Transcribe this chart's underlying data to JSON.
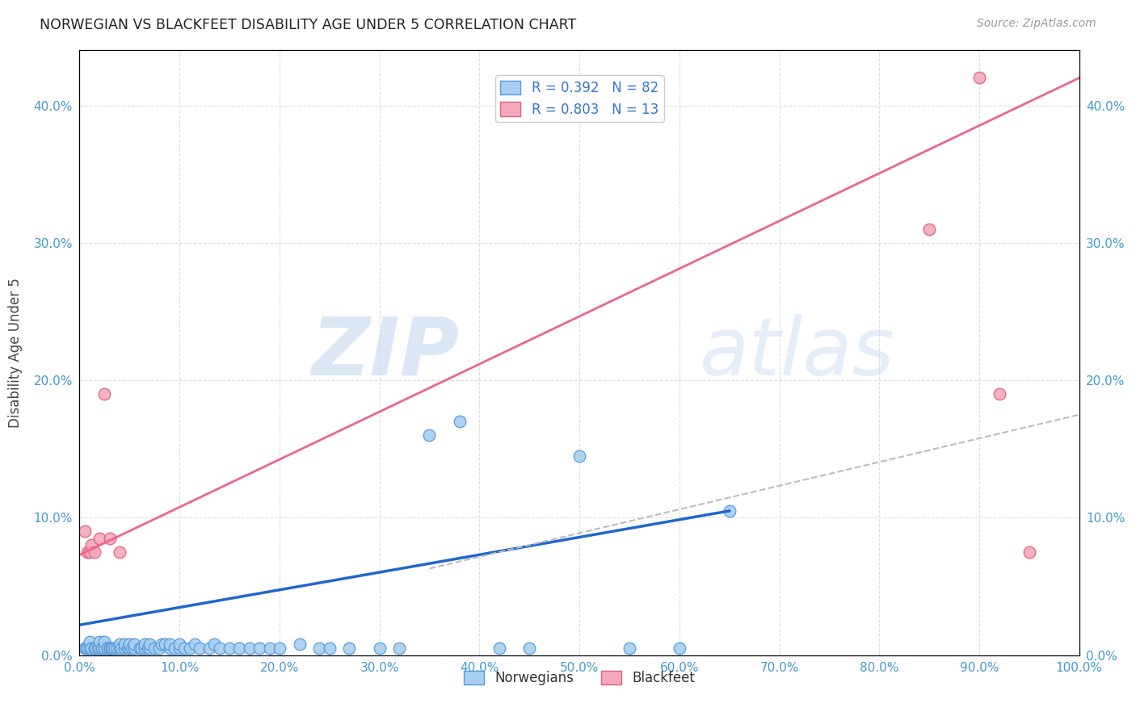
{
  "title": "NORWEGIAN VS BLACKFEET DISABILITY AGE UNDER 5 CORRELATION CHART",
  "source": "Source: ZipAtlas.com",
  "ylabel": "Disability Age Under 5",
  "xlim": [
    0.0,
    1.0
  ],
  "ylim": [
    0.0,
    0.44
  ],
  "x_ticks": [
    0.0,
    0.1,
    0.2,
    0.3,
    0.4,
    0.5,
    0.6,
    0.7,
    0.8,
    0.9,
    1.0
  ],
  "x_tick_labels": [
    "0.0%",
    "10.0%",
    "20.0%",
    "30.0%",
    "40.0%",
    "50.0%",
    "60.0%",
    "70.0%",
    "80.0%",
    "90.0%",
    "100.0%"
  ],
  "y_ticks": [
    0.0,
    0.1,
    0.2,
    0.3,
    0.4
  ],
  "y_tick_labels": [
    "0.0%",
    "10.0%",
    "20.0%",
    "30.0%",
    "40.0%"
  ],
  "norwegian_R": 0.392,
  "norwegian_N": 82,
  "blackfeet_R": 0.803,
  "blackfeet_N": 13,
  "norwegian_color": "#A8CFF0",
  "blackfeet_color": "#F4A8BC",
  "norwegian_edge_color": "#5599DD",
  "blackfeet_edge_color": "#E06080",
  "norwegian_line_color": "#2266CC",
  "blackfeet_line_color": "#EE6688",
  "dashed_line_color": "#BBBBBB",
  "background_color": "#FFFFFF",
  "grid_color": "#DDDDDD",
  "watermark_zip": "ZIP",
  "watermark_atlas": "atlas",
  "norwegian_x": [
    0.005,
    0.007,
    0.008,
    0.01,
    0.01,
    0.012,
    0.015,
    0.015,
    0.016,
    0.018,
    0.02,
    0.02,
    0.02,
    0.022,
    0.022,
    0.025,
    0.025,
    0.025,
    0.028,
    0.028,
    0.03,
    0.03,
    0.03,
    0.032,
    0.033,
    0.035,
    0.035,
    0.038,
    0.04,
    0.04,
    0.042,
    0.045,
    0.045,
    0.048,
    0.05,
    0.05,
    0.052,
    0.055,
    0.055,
    0.06,
    0.062,
    0.065,
    0.065,
    0.068,
    0.07,
    0.07,
    0.075,
    0.08,
    0.082,
    0.085,
    0.09,
    0.09,
    0.095,
    0.1,
    0.1,
    0.105,
    0.11,
    0.115,
    0.12,
    0.13,
    0.135,
    0.14,
    0.15,
    0.16,
    0.17,
    0.18,
    0.19,
    0.2,
    0.22,
    0.24,
    0.25,
    0.27,
    0.3,
    0.32,
    0.35,
    0.38,
    0.42,
    0.45,
    0.5,
    0.55,
    0.6,
    0.65
  ],
  "norwegian_y": [
    0.005,
    0.005,
    0.005,
    0.005,
    0.01,
    0.005,
    0.005,
    0.005,
    0.005,
    0.005,
    0.005,
    0.005,
    0.01,
    0.005,
    0.005,
    0.005,
    0.005,
    0.01,
    0.005,
    0.005,
    0.005,
    0.005,
    0.005,
    0.005,
    0.005,
    0.005,
    0.005,
    0.005,
    0.005,
    0.008,
    0.005,
    0.005,
    0.008,
    0.005,
    0.005,
    0.008,
    0.005,
    0.005,
    0.008,
    0.005,
    0.005,
    0.005,
    0.008,
    0.005,
    0.005,
    0.008,
    0.005,
    0.005,
    0.008,
    0.008,
    0.005,
    0.008,
    0.005,
    0.005,
    0.008,
    0.005,
    0.005,
    0.008,
    0.005,
    0.005,
    0.008,
    0.005,
    0.005,
    0.005,
    0.005,
    0.005,
    0.005,
    0.005,
    0.008,
    0.005,
    0.005,
    0.005,
    0.005,
    0.005,
    0.16,
    0.17,
    0.005,
    0.005,
    0.145,
    0.005,
    0.005,
    0.105
  ],
  "blackfeet_x": [
    0.005,
    0.008,
    0.01,
    0.012,
    0.015,
    0.02,
    0.025,
    0.03,
    0.04,
    0.85,
    0.9,
    0.92,
    0.95
  ],
  "blackfeet_y": [
    0.09,
    0.075,
    0.075,
    0.08,
    0.075,
    0.085,
    0.19,
    0.085,
    0.075,
    0.31,
    0.42,
    0.19,
    0.075
  ],
  "norwegian_trend_x": [
    0.0,
    0.65
  ],
  "norwegian_trend_y": [
    0.022,
    0.105
  ],
  "blackfeet_trend_x": [
    0.0,
    1.0
  ],
  "blackfeet_trend_y": [
    0.073,
    0.42
  ],
  "dashed_trend_x": [
    0.35,
    1.0
  ],
  "dashed_trend_y": [
    0.063,
    0.175
  ]
}
